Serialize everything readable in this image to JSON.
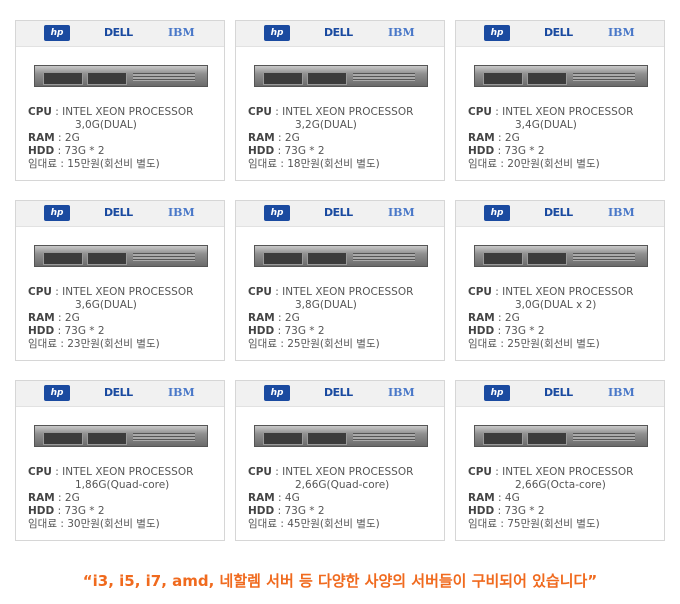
{
  "brands": {
    "hp": "hp",
    "dell": "DELL",
    "ibm": "IBM"
  },
  "labels": {
    "cpu": "CPU",
    "ram": "RAM",
    "hdd": "HDD",
    "rent": "임대료"
  },
  "cards": [
    {
      "cpu": "INTEL XEON PROCESSOR",
      "cpu2": "3,0G(DUAL)",
      "ram": "2G",
      "hdd": "73G * 2",
      "rent": "15만원(회선비 별도)"
    },
    {
      "cpu": "INTEL XEON PROCESSOR",
      "cpu2": "3,2G(DUAL)",
      "ram": "2G",
      "hdd": "73G * 2",
      "rent": "18만원(회선비 별도)"
    },
    {
      "cpu": "INTEL XEON PROCESSOR",
      "cpu2": "3,4G(DUAL)",
      "ram": "2G",
      "hdd": "73G * 2",
      "rent": "20만원(회선비 별도)"
    },
    {
      "cpu": "INTEL XEON PROCESSOR",
      "cpu2": "3,6G(DUAL)",
      "ram": "2G",
      "hdd": "73G * 2",
      "rent": "23만원(회선비 별도)"
    },
    {
      "cpu": "INTEL XEON PROCESSOR",
      "cpu2": "3,8G(DUAL)",
      "ram": "2G",
      "hdd": "73G * 2",
      "rent": "25만원(회선비 별도)"
    },
    {
      "cpu": "INTEL XEON PROCESSOR",
      "cpu2": "3,0G(DUAL x 2)",
      "ram": "2G",
      "hdd": "73G * 2",
      "rent": "25만원(회선비 별도)"
    },
    {
      "cpu": "INTEL XEON PROCESSOR",
      "cpu2": "1,86G(Quad-core)",
      "ram": "2G",
      "hdd": "73G * 2",
      "rent": "30만원(회선비 별도)"
    },
    {
      "cpu": "INTEL XEON PROCESSOR",
      "cpu2": "2,66G(Quad-core)",
      "ram": "4G",
      "hdd": "73G * 2",
      "rent": "45만원(회선비 별도)"
    },
    {
      "cpu": "INTEL XEON PROCESSOR",
      "cpu2": "2,66G(Octa-core)",
      "ram": "4G",
      "hdd": "73G * 2",
      "rent": "75만원(회선비 별도)"
    }
  ],
  "slogan": "“i3, i5, i7, amd, 네할렘 서버 등 다양한 사양의 서버들이 구비되어 있습니다”"
}
